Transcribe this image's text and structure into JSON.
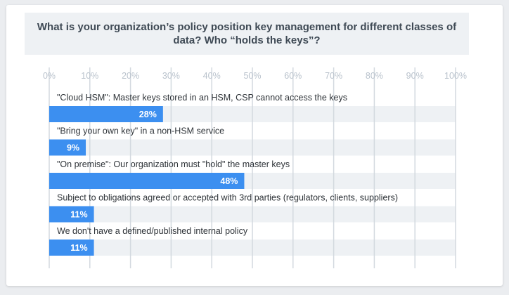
{
  "chart_data": {
    "type": "bar",
    "orientation": "horizontal",
    "title": "What is your organization’s policy position key management for different  classes of  data? Who “holds the keys”?",
    "xlim": [
      0,
      100
    ],
    "x_ticks": [
      "0%",
      "10%",
      "20%",
      "30%",
      "40%",
      "50%",
      "60%",
      "70%",
      "80%",
      "90%",
      "100%"
    ],
    "categories": [
      "\"Cloud HSM\": Master keys stored in an HSM, CSP cannot access the keys",
      "\"Bring your own key\" in a non-HSM service",
      "\"On premise\": Our organization must \"hold\" the master keys",
      "Subject to obligations agreed or accepted with 3rd parties (regulators, clients, suppliers)",
      "We don't have a defined/published internal policy"
    ],
    "values": [
      28,
      9,
      48,
      11,
      11
    ],
    "value_labels": [
      "28%",
      "9%",
      "48%",
      "11%",
      "11%"
    ],
    "grid": true,
    "bar_color": "#3c8ff0",
    "track_color": "#eef1f4",
    "grid_color": "#d3d9df"
  }
}
